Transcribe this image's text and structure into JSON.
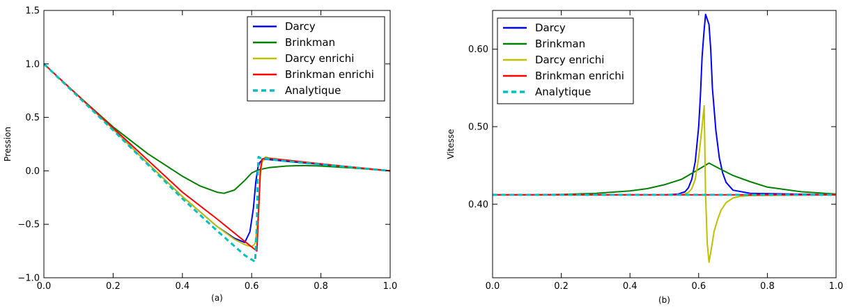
{
  "chart_data": [
    {
      "type": "line",
      "caption": "(a)",
      "ylabel": "Pression",
      "xlabel": "",
      "xlim": [
        0.0,
        1.0
      ],
      "ylim": [
        -1.0,
        1.5
      ],
      "xticks": [
        0.0,
        0.2,
        0.4,
        0.6,
        0.8,
        1.0
      ],
      "xtick_labels": [
        "0.0",
        "0.2",
        "0.4",
        "0.6",
        "0.8",
        "1.0"
      ],
      "yticks": [
        -1.0,
        -0.5,
        0.0,
        0.5,
        1.0,
        1.5
      ],
      "ytick_labels": [
        "−1.0",
        "−0.5",
        "0.0",
        "0.5",
        "1.0",
        "1.5"
      ],
      "legend_position": "top-right",
      "series": [
        {
          "name": "Darcy",
          "color": "#0000ff",
          "dashed": false,
          "x": [
            0.0,
            0.1,
            0.2,
            0.3,
            0.4,
            0.5,
            0.55,
            0.58,
            0.595,
            0.605,
            0.612,
            0.618,
            0.624,
            0.63,
            0.64,
            0.65,
            0.7,
            0.8,
            0.9,
            1.0
          ],
          "y": [
            1.0,
            0.7,
            0.39,
            0.07,
            -0.24,
            -0.52,
            -0.63,
            -0.67,
            -0.57,
            -0.35,
            -0.1,
            0.03,
            0.08,
            0.1,
            0.108,
            0.105,
            0.09,
            0.06,
            0.03,
            0.0
          ]
        },
        {
          "name": "Brinkman",
          "color": "#008000",
          "dashed": false,
          "x": [
            0.0,
            0.1,
            0.2,
            0.3,
            0.4,
            0.45,
            0.5,
            0.52,
            0.55,
            0.58,
            0.6,
            0.62,
            0.65,
            0.7,
            0.75,
            0.8,
            0.9,
            1.0
          ],
          "y": [
            1.0,
            0.7,
            0.41,
            0.16,
            -0.05,
            -0.14,
            -0.2,
            -0.21,
            -0.18,
            -0.09,
            -0.02,
            0.01,
            0.03,
            0.045,
            0.05,
            0.045,
            0.025,
            0.0
          ]
        },
        {
          "name": "Darcy enrichi",
          "color": "#bfbf00",
          "dashed": false,
          "x": [
            0.0,
            0.1,
            0.2,
            0.3,
            0.4,
            0.5,
            0.55,
            0.58,
            0.6,
            0.61,
            0.62,
            0.625,
            0.63,
            0.64,
            0.65,
            0.7,
            0.8,
            0.9,
            1.0
          ],
          "y": [
            1.0,
            0.7,
            0.39,
            0.07,
            -0.24,
            -0.52,
            -0.64,
            -0.69,
            -0.71,
            -0.68,
            -0.4,
            -0.05,
            0.08,
            0.13,
            0.12,
            0.1,
            0.065,
            0.032,
            0.0
          ]
        },
        {
          "name": "Brinkman enrichi",
          "color": "#ff0000",
          "dashed": false,
          "x": [
            0.0,
            0.1,
            0.2,
            0.3,
            0.4,
            0.5,
            0.58,
            0.615,
            0.625,
            0.63,
            0.64,
            0.7,
            0.8,
            0.9,
            1.0
          ],
          "y": [
            1.0,
            0.7,
            0.4,
            0.1,
            -0.2,
            -0.45,
            -0.66,
            -0.75,
            0.0,
            0.11,
            0.12,
            0.1,
            0.065,
            0.032,
            0.0
          ]
        },
        {
          "name": "Analytique",
          "color": "#00bfbf",
          "dashed": true,
          "x": [
            0.0,
            0.1,
            0.2,
            0.3,
            0.4,
            0.5,
            0.58,
            0.61,
            0.615,
            0.618,
            0.62,
            0.625,
            0.7,
            0.8,
            0.9,
            1.0
          ],
          "y": [
            1.0,
            0.69,
            0.38,
            0.06,
            -0.26,
            -0.56,
            -0.79,
            -0.85,
            -0.5,
            0.0,
            0.13,
            0.12,
            0.09,
            0.06,
            0.03,
            0.0
          ]
        }
      ]
    },
    {
      "type": "line",
      "caption": "(b)",
      "ylabel": "Vitesse",
      "xlabel": "",
      "xlim": [
        0.0,
        1.0
      ],
      "ylim": [
        0.305,
        0.65
      ],
      "xticks": [
        0.0,
        0.2,
        0.4,
        0.6,
        0.8,
        1.0
      ],
      "xtick_labels": [
        "0.0",
        "0.2",
        "0.4",
        "0.6",
        "0.8",
        "1.0"
      ],
      "yticks": [
        0.4,
        0.5,
        0.6
      ],
      "ytick_labels": [
        "0.40",
        "0.50",
        "0.60"
      ],
      "legend_position": "top-left",
      "series": [
        {
          "name": "Darcy",
          "color": "#0000ff",
          "dashed": false,
          "x": [
            0.0,
            0.5,
            0.54,
            0.56,
            0.57,
            0.58,
            0.59,
            0.6,
            0.605,
            0.61,
            0.615,
            0.62,
            0.63,
            0.635,
            0.64,
            0.65,
            0.66,
            0.67,
            0.68,
            0.7,
            0.75,
            1.0
          ],
          "y": [
            0.412,
            0.412,
            0.413,
            0.416,
            0.421,
            0.432,
            0.455,
            0.5,
            0.54,
            0.59,
            0.62,
            0.645,
            0.632,
            0.6,
            0.55,
            0.495,
            0.46,
            0.44,
            0.428,
            0.418,
            0.414,
            0.412
          ]
        },
        {
          "name": "Brinkman",
          "color": "#008000",
          "dashed": false,
          "x": [
            0.0,
            0.1,
            0.2,
            0.3,
            0.4,
            0.45,
            0.5,
            0.55,
            0.6,
            0.63,
            0.66,
            0.7,
            0.75,
            0.8,
            0.9,
            1.0
          ],
          "y": [
            0.412,
            0.412,
            0.4125,
            0.414,
            0.417,
            0.42,
            0.425,
            0.432,
            0.445,
            0.453,
            0.446,
            0.437,
            0.429,
            0.422,
            0.416,
            0.413
          ]
        },
        {
          "name": "Darcy enrichi",
          "color": "#bfbf00",
          "dashed": false,
          "x": [
            0.0,
            0.55,
            0.57,
            0.58,
            0.59,
            0.6,
            0.61,
            0.616,
            0.62,
            0.625,
            0.63,
            0.638,
            0.645,
            0.655,
            0.665,
            0.68,
            0.7,
            0.72,
            0.75,
            1.0
          ],
          "y": [
            0.412,
            0.412,
            0.415,
            0.42,
            0.432,
            0.46,
            0.5,
            0.527,
            0.412,
            0.35,
            0.325,
            0.345,
            0.365,
            0.38,
            0.392,
            0.402,
            0.408,
            0.41,
            0.411,
            0.412
          ]
        },
        {
          "name": "Brinkman enrichi",
          "color": "#ff0000",
          "dashed": false,
          "x": [
            0.0,
            1.0
          ],
          "y": [
            0.412,
            0.412
          ]
        },
        {
          "name": "Analytique",
          "color": "#00bfbf",
          "dashed": true,
          "x": [
            0.0,
            1.0
          ],
          "y": [
            0.412,
            0.412
          ]
        }
      ]
    }
  ]
}
